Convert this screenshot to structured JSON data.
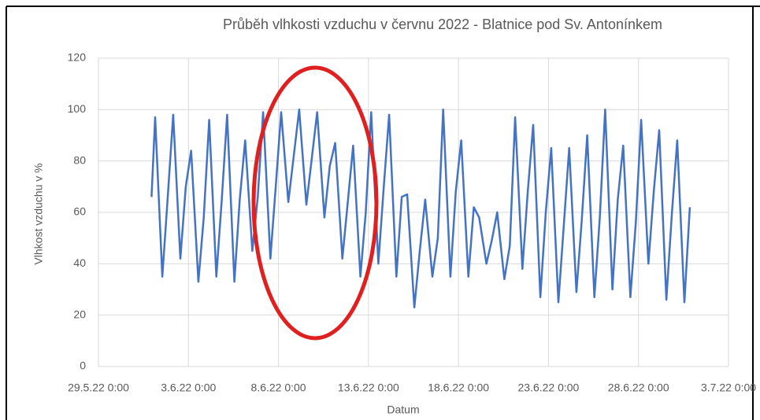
{
  "chart_data": {
    "type": "line",
    "title": "Průběh  vlhkosti vzduchu v červnu 2022 - Blatnice pod Sv. Antonínkem",
    "x_label": "Datum",
    "y_label": "Vlhkost vzduchu v %",
    "xlim": [
      0,
      35
    ],
    "xticks": [
      {
        "value": 0,
        "label": "29.5.22 0:00"
      },
      {
        "value": 5,
        "label": "3.6.22 0:00"
      },
      {
        "value": 10,
        "label": "8.6.22 0:00"
      },
      {
        "value": 15,
        "label": "13.6.22 0:00"
      },
      {
        "value": 20,
        "label": "18.6.22 0:00"
      },
      {
        "value": 25,
        "label": "23.6.22 0:00"
      },
      {
        "value": 30,
        "label": "28.6.22 0:00"
      },
      {
        "value": 35,
        "label": "3.7.22 0:00"
      }
    ],
    "ylim": [
      0,
      120
    ],
    "yticks": [
      0,
      20,
      40,
      60,
      80,
      100,
      120
    ],
    "grid": true,
    "series": [
      {
        "color": "#4472c4",
        "x": [
          2.95,
          3.15,
          3.55,
          3.85,
          4.15,
          4.55,
          4.85,
          5.15,
          5.55,
          5.85,
          6.15,
          6.55,
          6.85,
          7.15,
          7.55,
          7.85,
          8.15,
          8.55,
          8.85,
          9.15,
          9.55,
          9.85,
          10.15,
          10.55,
          10.85,
          11.15,
          11.55,
          11.85,
          12.15,
          12.55,
          12.85,
          13.15,
          13.55,
          13.85,
          14.15,
          14.55,
          14.85,
          15.15,
          15.55,
          15.85,
          16.15,
          16.55,
          16.85,
          17.15,
          17.55,
          17.85,
          18.15,
          18.55,
          18.85,
          19.15,
          19.55,
          19.85,
          20.15,
          20.55,
          20.85,
          21.15,
          21.55,
          21.85,
          22.15,
          22.55,
          22.85,
          23.15,
          23.55,
          23.85,
          24.15,
          24.55,
          24.85,
          25.15,
          25.55,
          25.85,
          26.15,
          26.55,
          26.85,
          27.15,
          27.55,
          27.85,
          28.15,
          28.55,
          28.85,
          29.15,
          29.55,
          29.85,
          30.15,
          30.55,
          30.85,
          31.15,
          31.55,
          31.85,
          32.15,
          32.55,
          32.85
        ],
        "values": [
          66,
          97,
          35,
          66,
          98,
          42,
          70,
          84,
          33,
          58,
          96,
          35,
          65,
          98,
          33,
          65,
          88,
          45,
          66,
          99,
          42,
          70,
          99,
          64,
          82,
          100,
          63,
          81,
          99,
          58,
          78,
          87,
          42,
          64,
          86,
          35,
          60,
          99,
          40,
          70,
          98,
          35,
          66,
          67,
          23,
          45,
          65,
          35,
          50,
          100,
          35,
          68,
          88,
          35,
          62,
          58,
          40,
          49,
          60,
          34,
          47,
          97,
          38,
          68,
          94,
          27,
          60,
          85,
          25,
          55,
          85,
          29,
          57,
          90,
          27,
          58,
          100,
          30,
          65,
          86,
          27,
          56,
          96,
          40,
          68,
          92,
          26,
          59,
          88,
          25,
          62
        ]
      }
    ]
  }
}
